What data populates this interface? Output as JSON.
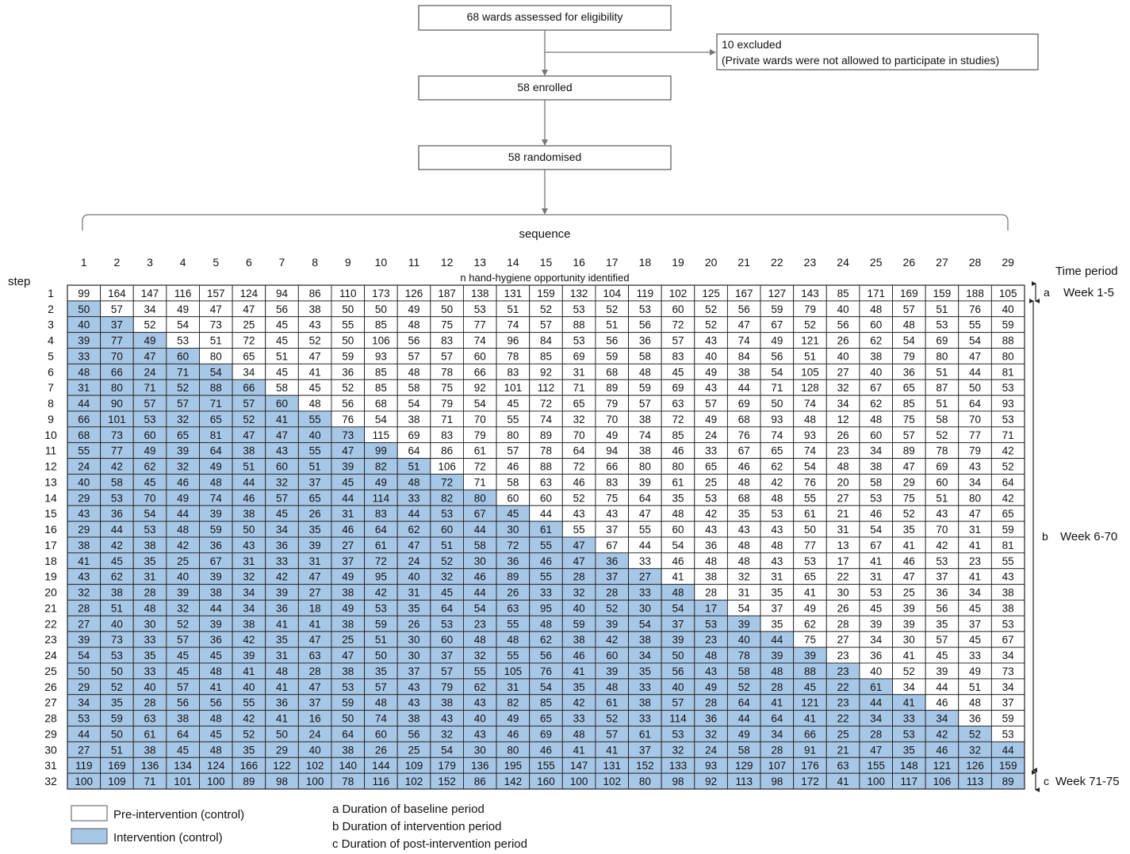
{
  "flow": {
    "assessed": "68 wards assessed for eligibility",
    "excluded_line1": "10 excluded",
    "excluded_line2": "(Private wards were not allowed to participate in studies)",
    "enrolled": "58 enrolled",
    "randomised": "58 randomised"
  },
  "labels": {
    "sequence": "sequence",
    "step": "step",
    "time_period": "Time period",
    "n_caption": "n hand-hygiene opportunity identified"
  },
  "periods": [
    {
      "letter": "a",
      "label": "Week 1-5"
    },
    {
      "letter": "b",
      "label": "Week 6-70"
    },
    {
      "letter": "c",
      "label": "Week 71-75"
    }
  ],
  "legend": {
    "pre": "Pre-intervention (control)",
    "intervention": "Intervention (control)",
    "pre_color": "#ffffff",
    "intervention_color": "#a7c7e7",
    "notes": [
      "a Duration of baseline period",
      "b Duration of intervention period",
      "c Duration of post-intervention period"
    ]
  },
  "chart_data": {
    "type": "table",
    "sequences": [
      1,
      2,
      3,
      4,
      5,
      6,
      7,
      8,
      9,
      10,
      11,
      12,
      13,
      14,
      15,
      16,
      17,
      18,
      19,
      20,
      21,
      22,
      23,
      24,
      25,
      26,
      27,
      28,
      29
    ],
    "steps": [
      1,
      2,
      3,
      4,
      5,
      6,
      7,
      8,
      9,
      10,
      11,
      12,
      13,
      14,
      15,
      16,
      17,
      18,
      19,
      20,
      21,
      22,
      23,
      24,
      25,
      26,
      27,
      28,
      29,
      30,
      31,
      32
    ],
    "shading_rule": "cell is intervention when sequence < step",
    "values": [
      [
        99,
        164,
        147,
        116,
        157,
        124,
        94,
        86,
        110,
        173,
        126,
        187,
        138,
        131,
        159,
        132,
        104,
        119,
        102,
        125,
        167,
        127,
        143,
        85,
        171,
        169,
        159,
        188,
        105
      ],
      [
        50,
        57,
        34,
        49,
        47,
        47,
        56,
        38,
        50,
        50,
        49,
        50,
        53,
        51,
        52,
        53,
        52,
        53,
        60,
        52,
        56,
        59,
        79,
        40,
        48,
        57,
        51,
        76,
        40
      ],
      [
        40,
        37,
        52,
        54,
        73,
        25,
        45,
        43,
        55,
        85,
        48,
        75,
        77,
        74,
        57,
        88,
        51,
        56,
        72,
        52,
        47,
        67,
        52,
        56,
        60,
        48,
        53,
        55,
        59
      ],
      [
        39,
        77,
        49,
        53,
        51,
        72,
        45,
        52,
        50,
        106,
        56,
        83,
        74,
        96,
        84,
        53,
        56,
        36,
        57,
        43,
        74,
        49,
        121,
        26,
        62,
        54,
        69,
        54,
        88
      ],
      [
        33,
        70,
        47,
        60,
        80,
        65,
        51,
        47,
        59,
        93,
        57,
        57,
        60,
        78,
        85,
        69,
        59,
        58,
        83,
        40,
        84,
        56,
        51,
        40,
        38,
        79,
        80,
        47,
        80
      ],
      [
        48,
        66,
        24,
        71,
        54,
        34,
        45,
        41,
        36,
        85,
        48,
        78,
        66,
        83,
        92,
        31,
        68,
        48,
        45,
        49,
        38,
        54,
        105,
        27,
        40,
        36,
        51,
        44,
        81
      ],
      [
        31,
        80,
        71,
        52,
        88,
        66,
        58,
        45,
        52,
        85,
        58,
        75,
        92,
        101,
        112,
        71,
        89,
        59,
        69,
        43,
        44,
        71,
        128,
        32,
        67,
        65,
        87,
        50,
        53
      ],
      [
        44,
        90,
        57,
        57,
        71,
        57,
        60,
        48,
        56,
        68,
        54,
        79,
        54,
        45,
        72,
        65,
        79,
        57,
        63,
        57,
        69,
        50,
        74,
        34,
        62,
        85,
        51,
        64,
        93
      ],
      [
        66,
        101,
        53,
        32,
        65,
        52,
        41,
        55,
        76,
        54,
        38,
        71,
        70,
        55,
        74,
        32,
        70,
        38,
        72,
        49,
        68,
        93,
        48,
        12,
        48,
        75,
        58,
        70,
        53
      ],
      [
        68,
        73,
        60,
        65,
        81,
        47,
        47,
        40,
        73,
        115,
        69,
        83,
        79,
        80,
        89,
        70,
        49,
        74,
        85,
        24,
        76,
        74,
        93,
        26,
        60,
        57,
        52,
        77,
        71
      ],
      [
        55,
        77,
        49,
        39,
        64,
        38,
        43,
        55,
        47,
        99,
        64,
        86,
        61,
        57,
        78,
        64,
        94,
        38,
        46,
        33,
        67,
        65,
        74,
        23,
        34,
        89,
        78,
        79,
        42
      ],
      [
        24,
        42,
        62,
        32,
        49,
        51,
        60,
        51,
        39,
        82,
        51,
        106,
        72,
        46,
        88,
        72,
        66,
        80,
        80,
        65,
        46,
        62,
        54,
        48,
        38,
        47,
        69,
        43,
        52
      ],
      [
        40,
        58,
        45,
        46,
        48,
        44,
        32,
        37,
        45,
        49,
        48,
        72,
        71,
        58,
        63,
        46,
        83,
        39,
        61,
        25,
        48,
        42,
        76,
        20,
        58,
        29,
        60,
        34,
        64
      ],
      [
        29,
        53,
        70,
        49,
        74,
        46,
        57,
        65,
        44,
        114,
        33,
        82,
        80,
        60,
        60,
        52,
        75,
        64,
        35,
        53,
        68,
        48,
        55,
        27,
        53,
        75,
        51,
        80,
        42
      ],
      [
        43,
        36,
        54,
        44,
        39,
        38,
        45,
        26,
        31,
        83,
        44,
        53,
        67,
        45,
        44,
        43,
        43,
        47,
        48,
        42,
        35,
        53,
        61,
        21,
        46,
        52,
        43,
        47,
        65
      ],
      [
        29,
        44,
        53,
        48,
        59,
        50,
        34,
        35,
        46,
        64,
        62,
        60,
        44,
        30,
        61,
        55,
        37,
        55,
        60,
        43,
        43,
        43,
        50,
        31,
        54,
        35,
        70,
        31,
        59
      ],
      [
        38,
        42,
        38,
        42,
        36,
        43,
        36,
        39,
        27,
        61,
        47,
        51,
        58,
        72,
        55,
        47,
        67,
        44,
        54,
        36,
        48,
        48,
        77,
        13,
        67,
        41,
        42,
        41,
        81
      ],
      [
        41,
        45,
        35,
        25,
        67,
        31,
        33,
        31,
        37,
        72,
        24,
        52,
        30,
        36,
        46,
        47,
        36,
        33,
        46,
        48,
        48,
        43,
        53,
        17,
        41,
        46,
        53,
        23,
        55
      ],
      [
        43,
        62,
        31,
        40,
        39,
        32,
        42,
        47,
        49,
        95,
        40,
        32,
        46,
        89,
        55,
        28,
        37,
        27,
        41,
        38,
        32,
        31,
        65,
        22,
        31,
        47,
        37,
        41,
        43
      ],
      [
        32,
        38,
        28,
        39,
        38,
        34,
        39,
        27,
        38,
        42,
        31,
        45,
        44,
        26,
        33,
        32,
        28,
        33,
        48,
        28,
        31,
        35,
        41,
        30,
        53,
        25,
        36,
        34,
        38
      ],
      [
        28,
        51,
        48,
        32,
        44,
        34,
        36,
        18,
        49,
        53,
        35,
        64,
        54,
        63,
        95,
        40,
        52,
        30,
        54,
        17,
        54,
        37,
        49,
        26,
        45,
        39,
        56,
        45,
        38
      ],
      [
        27,
        40,
        30,
        52,
        39,
        38,
        41,
        41,
        38,
        59,
        26,
        53,
        23,
        55,
        48,
        59,
        39,
        54,
        37,
        53,
        39,
        35,
        62,
        28,
        39,
        39,
        35,
        37,
        53
      ],
      [
        39,
        73,
        33,
        57,
        36,
        42,
        35,
        47,
        25,
        51,
        30,
        60,
        48,
        48,
        62,
        38,
        42,
        38,
        39,
        23,
        40,
        44,
        75,
        27,
        34,
        30,
        57,
        45,
        67
      ],
      [
        54,
        53,
        35,
        45,
        45,
        39,
        31,
        63,
        47,
        50,
        30,
        37,
        32,
        55,
        56,
        46,
        60,
        34,
        50,
        48,
        78,
        39,
        39,
        23,
        36,
        41,
        45,
        33,
        34
      ],
      [
        50,
        50,
        33,
        45,
        48,
        41,
        48,
        28,
        38,
        35,
        37,
        57,
        55,
        105,
        76,
        41,
        39,
        35,
        56,
        43,
        58,
        48,
        88,
        23,
        40,
        52,
        39,
        49,
        73
      ],
      [
        29,
        52,
        40,
        57,
        41,
        40,
        41,
        47,
        53,
        57,
        43,
        79,
        62,
        31,
        54,
        35,
        48,
        33,
        40,
        49,
        52,
        28,
        45,
        22,
        61,
        34,
        44,
        51,
        34
      ],
      [
        34,
        35,
        28,
        56,
        56,
        55,
        36,
        37,
        59,
        48,
        43,
        38,
        43,
        82,
        85,
        42,
        61,
        38,
        57,
        28,
        64,
        41,
        121,
        23,
        44,
        41,
        46,
        48,
        37
      ],
      [
        53,
        59,
        63,
        38,
        48,
        42,
        41,
        16,
        50,
        74,
        38,
        43,
        40,
        49,
        65,
        33,
        52,
        33,
        114,
        36,
        44,
        64,
        41,
        22,
        34,
        33,
        34,
        36,
        59
      ],
      [
        44,
        50,
        61,
        64,
        45,
        52,
        50,
        24,
        64,
        60,
        56,
        32,
        43,
        46,
        69,
        48,
        57,
        61,
        53,
        32,
        49,
        34,
        66,
        25,
        28,
        53,
        42,
        52,
        53
      ],
      [
        27,
        51,
        38,
        45,
        48,
        35,
        29,
        40,
        38,
        26,
        25,
        54,
        30,
        80,
        46,
        41,
        41,
        37,
        32,
        24,
        58,
        28,
        91,
        21,
        47,
        35,
        46,
        32,
        44
      ],
      [
        119,
        169,
        136,
        134,
        124,
        166,
        122,
        102,
        140,
        144,
        109,
        179,
        136,
        195,
        155,
        147,
        131,
        152,
        133,
        93,
        129,
        107,
        176,
        63,
        155,
        148,
        121,
        126,
        159
      ],
      [
        100,
        109,
        71,
        101,
        100,
        89,
        98,
        100,
        78,
        116,
        102,
        152,
        86,
        142,
        160,
        100,
        102,
        80,
        98,
        92,
        113,
        98,
        172,
        41,
        100,
        117,
        106,
        113,
        89
      ]
    ]
  }
}
